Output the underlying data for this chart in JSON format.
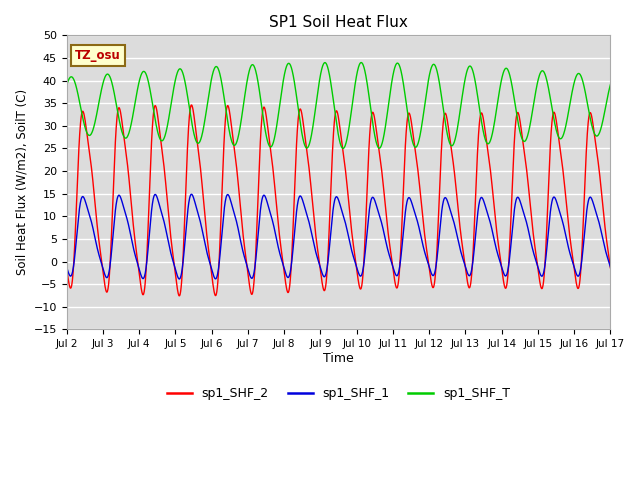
{
  "title": "SP1 Soil Heat Flux",
  "xlabel": "Time",
  "ylabel": "Soil Heat Flux (W/m2), SoilT (C)",
  "ylim": [
    -15,
    50
  ],
  "xlim": [
    0,
    15
  ],
  "x_tick_labels": [
    "Jul 2",
    "Jul 3",
    "Jul 4",
    "Jul 5",
    "Jul 6",
    "Jul 7",
    "Jul 8",
    "Jul 9",
    "Jul 10",
    "Jul 11",
    "Jul 12",
    "Jul 13",
    "Jul 14",
    "Jul 15",
    "Jul 16",
    "Jul 17"
  ],
  "yticks": [
    -15,
    -10,
    -5,
    0,
    5,
    10,
    15,
    20,
    25,
    30,
    35,
    40,
    45,
    50
  ],
  "color_red": "#FF0000",
  "color_blue": "#0000DD",
  "color_green": "#00CC00",
  "bg_color": "#DCDCDC",
  "legend_labels": [
    "sp1_SHF_2",
    "sp1_SHF_1",
    "sp1_SHF_T"
  ],
  "tz_label": "TZ_osu",
  "tz_bg": "#FFFFCC",
  "tz_border": "#8B6914"
}
